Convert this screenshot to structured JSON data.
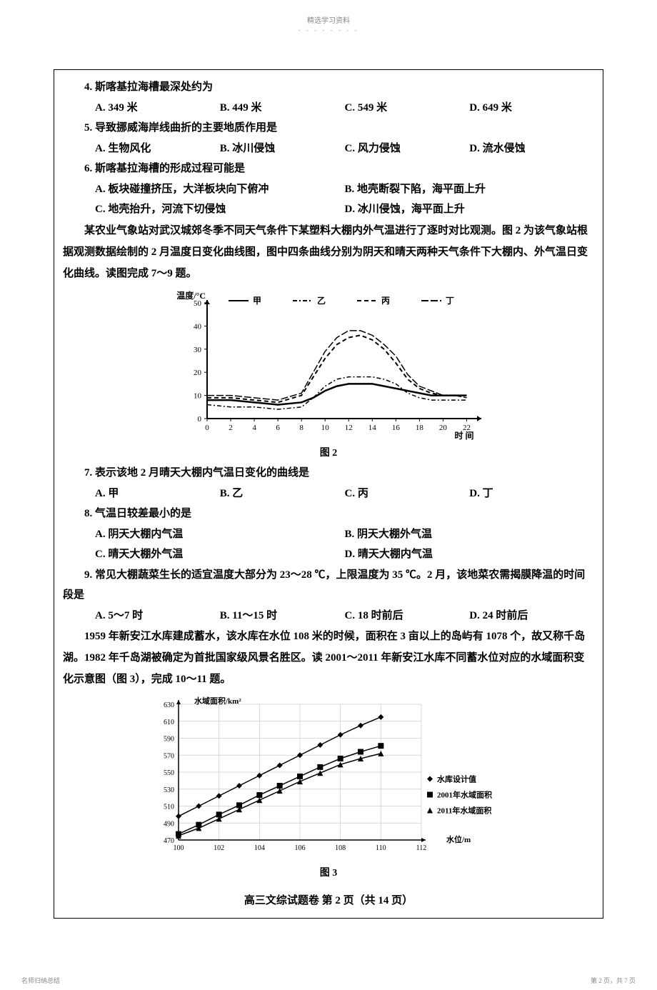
{
  "header": {
    "label": "精选学习资料",
    "dots": "- - - - - - - -"
  },
  "q4": {
    "stem": "4. 斯喀基拉海槽最深处约为",
    "a": "A. 349 米",
    "b": "B. 449 米",
    "c": "C. 549 米",
    "d": "D. 649 米"
  },
  "q5": {
    "stem": "5. 导致挪威海岸线曲折的主要地质作用是",
    "a": "A. 生物风化",
    "b": "B. 冰川侵蚀",
    "c": "C. 风力侵蚀",
    "d": "D. 流水侵蚀"
  },
  "q6": {
    "stem": "6. 斯喀基拉海槽的形成过程可能是",
    "a": "A. 板块碰撞挤压，大洋板块向下俯冲",
    "b": "B. 地壳断裂下陷，海平面上升",
    "c": "C. 地壳抬升，河流下切侵蚀",
    "d": "D. 冰川侵蚀，海平面上升"
  },
  "passage1": "某农业气象站对武汉城郊冬季不同天气条件下某塑料大棚内外气温进行了逐时对比观测。图 2 为该气象站根据观测数据绘制的 2 月温度日变化曲线图，图中四条曲线分别为阴天和晴天两种天气条件下大棚内、外气温日变化曲线。读图完成 7～9 题。",
  "chart2": {
    "type": "line",
    "title": "图 2",
    "ylabel": "温度/°C",
    "xlabel": "时 间",
    "xticks": [
      0,
      2,
      4,
      6,
      8,
      10,
      12,
      14,
      16,
      18,
      20,
      22
    ],
    "yticks": [
      0,
      10,
      20,
      30,
      40,
      50
    ],
    "ylim": [
      0,
      50
    ],
    "xlim": [
      0,
      23
    ],
    "legend": {
      "jia": "甲",
      "yi": "乙",
      "bing": "丙",
      "ding": "丁"
    },
    "series": {
      "jia": {
        "style": "solid",
        "width": 2.5,
        "color": "#000",
        "data": [
          [
            0,
            8
          ],
          [
            2,
            8
          ],
          [
            4,
            7
          ],
          [
            6,
            6
          ],
          [
            8,
            7
          ],
          [
            9,
            9
          ],
          [
            10,
            12
          ],
          [
            11,
            14
          ],
          [
            12,
            15
          ],
          [
            13,
            15
          ],
          [
            14,
            15
          ],
          [
            15,
            14
          ],
          [
            16,
            13
          ],
          [
            17,
            12
          ],
          [
            18,
            11
          ],
          [
            19,
            10
          ],
          [
            20,
            10
          ],
          [
            21,
            10
          ],
          [
            22,
            10
          ]
        ]
      },
      "yi": {
        "style": "dashdot",
        "width": 1.5,
        "color": "#000",
        "data": [
          [
            0,
            6
          ],
          [
            2,
            5
          ],
          [
            4,
            5
          ],
          [
            6,
            4
          ],
          [
            8,
            5
          ],
          [
            9,
            9
          ],
          [
            10,
            14
          ],
          [
            11,
            17
          ],
          [
            12,
            18
          ],
          [
            13,
            18
          ],
          [
            14,
            18
          ],
          [
            15,
            17
          ],
          [
            16,
            15
          ],
          [
            17,
            11
          ],
          [
            18,
            9
          ],
          [
            19,
            8
          ],
          [
            20,
            8
          ],
          [
            21,
            8
          ],
          [
            22,
            8
          ]
        ]
      },
      "bing": {
        "style": "dashed",
        "width": 2,
        "color": "#000",
        "data": [
          [
            0,
            9
          ],
          [
            2,
            9
          ],
          [
            4,
            8
          ],
          [
            6,
            7
          ],
          [
            8,
            10
          ],
          [
            9,
            18
          ],
          [
            10,
            26
          ],
          [
            11,
            32
          ],
          [
            12,
            35
          ],
          [
            13,
            36
          ],
          [
            14,
            34
          ],
          [
            15,
            30
          ],
          [
            16,
            24
          ],
          [
            17,
            17
          ],
          [
            18,
            13
          ],
          [
            19,
            11
          ],
          [
            20,
            10
          ],
          [
            21,
            10
          ],
          [
            22,
            10
          ]
        ]
      },
      "ding": {
        "style": "longdash",
        "width": 1.5,
        "color": "#000",
        "data": [
          [
            0,
            10
          ],
          [
            2,
            10
          ],
          [
            4,
            9
          ],
          [
            6,
            8
          ],
          [
            8,
            11
          ],
          [
            9,
            20
          ],
          [
            10,
            29
          ],
          [
            11,
            35
          ],
          [
            12,
            38
          ],
          [
            13,
            38
          ],
          [
            14,
            36
          ],
          [
            15,
            32
          ],
          [
            16,
            27
          ],
          [
            17,
            19
          ],
          [
            18,
            14
          ],
          [
            19,
            12
          ],
          [
            20,
            10
          ],
          [
            21,
            10
          ],
          [
            22,
            9
          ]
        ]
      }
    },
    "background": "#ffffff",
    "axis_color": "#000000",
    "font_size_label": 12,
    "font_size_tick": 11
  },
  "q7": {
    "stem": "7. 表示该地 2 月晴天大棚内气温日变化的曲线是",
    "a": "A. 甲",
    "b": "B. 乙",
    "c": "C. 丙",
    "d": "D. 丁"
  },
  "q8": {
    "stem": "8. 气温日较差最小的是",
    "a": "A. 阴天大棚内气温",
    "b": "B. 阴天大棚外气温",
    "c": "C. 晴天大棚外气温",
    "d": "D. 晴天大棚内气温"
  },
  "q9": {
    "stem": "9. 常见大棚蔬菜生长的适宜温度大部分为 23～28 ℃，上限温度为 35 ℃。2 月，该地菜农需揭膜降温的时间段是",
    "a": "A. 5～7 时",
    "b": "B. 11～15 时",
    "c": "C. 18 时前后",
    "d": "D. 24 时前后"
  },
  "passage2": "1959 年新安江水库建成蓄水，该水库在水位 108 米的时候，面积在 3 亩以上的岛屿有 1078 个，故又称千岛湖。1982 年千岛湖被确定为首批国家级风景名胜区。读 2001～2011 年新安江水库不同蓄水位对应的水域面积变化示意图（图 3），完成 10～11 题。",
  "chart3": {
    "type": "line-marker",
    "title": "图 3",
    "ylabel": "水域面积/km²",
    "xlabel": "水位/m",
    "xticks": [
      100,
      102,
      104,
      106,
      108,
      110,
      112
    ],
    "yticks": [
      470,
      490,
      510,
      530,
      550,
      570,
      590,
      610,
      630
    ],
    "xlim": [
      100,
      112
    ],
    "ylim": [
      470,
      630
    ],
    "legend": {
      "design": "◆水库设计值",
      "y2001": "■2001年水域面积",
      "y2011": "▲2011年水域面积"
    },
    "series": {
      "design": {
        "marker": "diamond",
        "color": "#000",
        "data": [
          [
            100,
            498
          ],
          [
            101,
            510
          ],
          [
            102,
            522
          ],
          [
            103,
            534
          ],
          [
            104,
            546
          ],
          [
            105,
            558
          ],
          [
            106,
            570
          ],
          [
            107,
            582
          ],
          [
            108,
            594
          ],
          [
            109,
            605
          ],
          [
            110,
            615
          ]
        ]
      },
      "y2001": {
        "marker": "square",
        "color": "#000",
        "data": [
          [
            100,
            477
          ],
          [
            101,
            488
          ],
          [
            102,
            500
          ],
          [
            103,
            511
          ],
          [
            104,
            523
          ],
          [
            105,
            534
          ],
          [
            106,
            545
          ],
          [
            107,
            556
          ],
          [
            108,
            566
          ],
          [
            109,
            574
          ],
          [
            110,
            581
          ]
        ]
      },
      "y2011": {
        "marker": "triangle",
        "color": "#000",
        "data": [
          [
            100,
            475
          ],
          [
            101,
            484
          ],
          [
            102,
            495
          ],
          [
            103,
            506
          ],
          [
            104,
            517
          ],
          [
            105,
            528
          ],
          [
            106,
            539
          ],
          [
            107,
            549
          ],
          [
            108,
            559
          ],
          [
            109,
            566
          ],
          [
            110,
            572
          ]
        ]
      }
    },
    "grid": "true",
    "grid_color": "#cccccc",
    "background": "#ffffff",
    "axis_color": "#000000",
    "font_size_label": 11,
    "font_size_tick": 10
  },
  "page_info": "高三文综试题卷 第 2 页（共 14 页）",
  "footer": {
    "left": "名师归纳总结",
    "right": "第 2 页，共 7 页"
  }
}
